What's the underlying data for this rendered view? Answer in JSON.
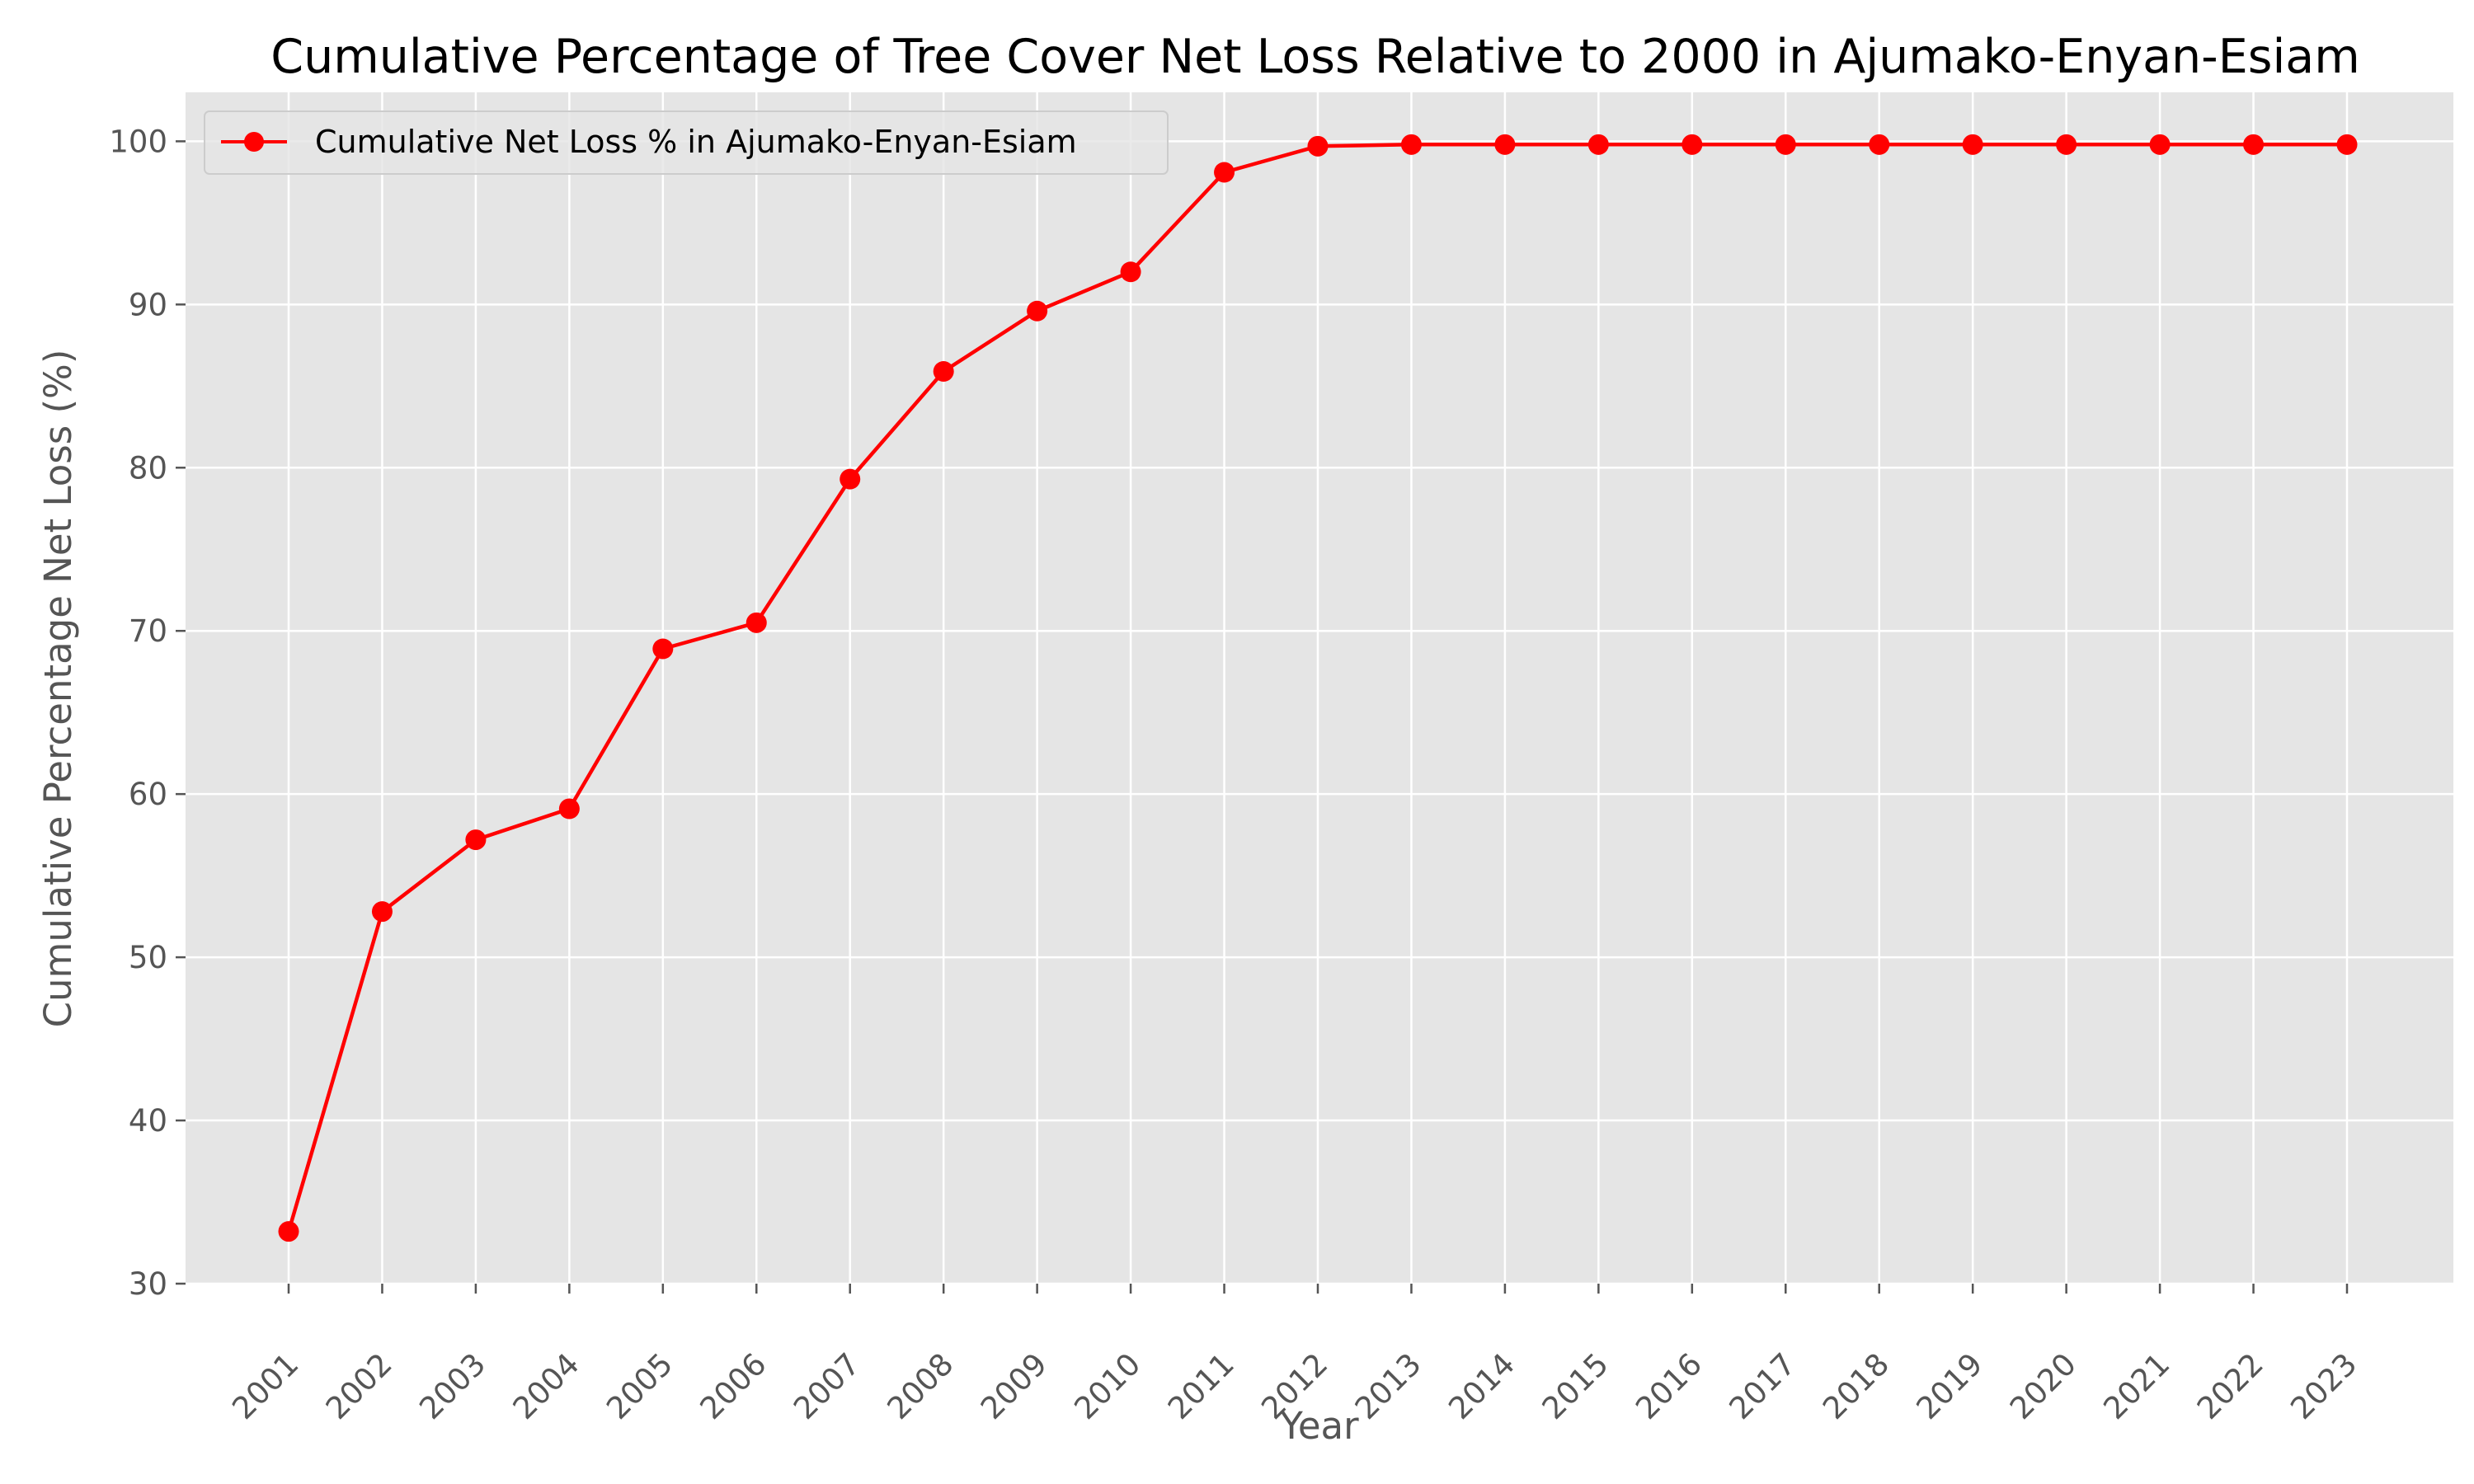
{
  "chart_data": {
    "type": "line",
    "title": "Cumulative Percentage of Tree Cover Net Loss Relative to 2000 in Ajumako-Enyan-Esiam",
    "xlabel": "Year",
    "ylabel": "Cumulative Percentage Net Loss (%)",
    "x": [
      "2001",
      "2002",
      "2003",
      "2004",
      "2005",
      "2006",
      "2007",
      "2008",
      "2009",
      "2010",
      "2011",
      "2012",
      "2013",
      "2014",
      "2015",
      "2016",
      "2017",
      "2018",
      "2019",
      "2020",
      "2021",
      "2022",
      "2023"
    ],
    "series": [
      {
        "name": "Cumulative Net Loss % in Ajumako-Enyan-Esiam",
        "color": "#ff0000",
        "marker": "circle",
        "values": [
          33.2,
          52.8,
          57.2,
          59.1,
          68.9,
          70.5,
          79.3,
          85.9,
          89.6,
          92.0,
          98.1,
          99.7,
          99.8,
          99.8,
          99.8,
          99.8,
          99.8,
          99.8,
          99.8,
          99.8,
          99.8,
          99.8,
          99.8
        ]
      }
    ],
    "ylim": [
      30,
      103
    ],
    "yticks": [
      30,
      40,
      50,
      60,
      70,
      80,
      90,
      100
    ],
    "grid": true,
    "legend_position": "top-left",
    "colors": {
      "plot_background": "#e5e5e5",
      "grid": "#ffffff",
      "tick_text": "#555555"
    }
  }
}
